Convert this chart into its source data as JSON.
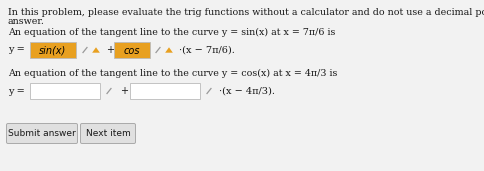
{
  "white_bg": "#f2f2f2",
  "text_color": "#1a1a1a",
  "instruction_line1": "In this problem, please evaluate the trig functions without a calculator and do not use a decimal point in your",
  "instruction_line2": "answer.",
  "eq1_label": "An equation of the tangent line to the curve y = sin(x) at x = 7π/6 is",
  "eq1_box1_text": "sin(x)",
  "eq1_box2_text": "cos",
  "eq1_suffix": "·(x − 7π/6).",
  "eq2_label": "An equation of the tangent line to the curve y = cos(x) at x = 4π/3 is",
  "eq2_suffix": "·(x − 4π/3).",
  "btn1_text": "Submit answer",
  "btn2_text": "Next item",
  "orange": "#e8a020",
  "pencil_gray": "#999999",
  "box_border": "#bbbbbb",
  "box_fill": "#ffffff",
  "btn_bg": "#e0e0e0",
  "btn_border": "#aaaaaa",
  "font_size_main": 7.0,
  "font_size_label": 6.8
}
